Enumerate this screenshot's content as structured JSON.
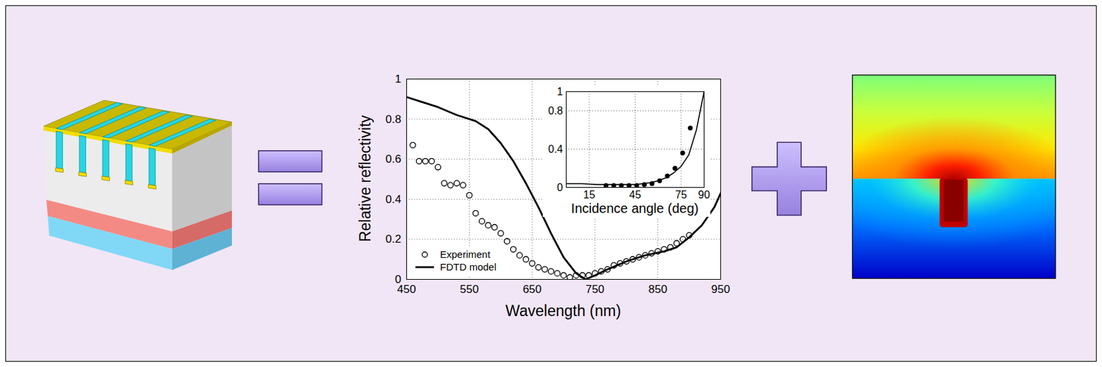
{
  "chart_data": [
    {
      "type": "line",
      "xlabel": "Wavelength (nm)",
      "ylabel": "Relative reflectivity",
      "xlim": [
        450,
        950
      ],
      "xticks": [
        450,
        550,
        650,
        750,
        850,
        950
      ],
      "ylim": [
        0,
        1
      ],
      "yticks": [
        0,
        0.2,
        0.4,
        0.6,
        0.8,
        1
      ],
      "grid": true,
      "legend": "lower left",
      "series": [
        {
          "name": "Experiment",
          "type": "scatter",
          "marker": "circle",
          "color": "#000000",
          "x": [
            460,
            470,
            480,
            490,
            500,
            510,
            520,
            530,
            540,
            550,
            560,
            570,
            580,
            590,
            600,
            610,
            620,
            630,
            640,
            650,
            660,
            670,
            680,
            690,
            700,
            710,
            720,
            730,
            740,
            750,
            760,
            770,
            780,
            790,
            800,
            810,
            820,
            830,
            840,
            850,
            860,
            870,
            880,
            890,
            900
          ],
          "values": [
            0.67,
            0.59,
            0.59,
            0.59,
            0.56,
            0.48,
            0.47,
            0.48,
            0.47,
            0.42,
            0.33,
            0.29,
            0.27,
            0.26,
            0.23,
            0.19,
            0.15,
            0.12,
            0.1,
            0.08,
            0.06,
            0.05,
            0.04,
            0.03,
            0.02,
            0.01,
            0.02,
            0.02,
            0.02,
            0.03,
            0.04,
            0.05,
            0.07,
            0.08,
            0.09,
            0.1,
            0.11,
            0.12,
            0.13,
            0.14,
            0.15,
            0.16,
            0.18,
            0.2,
            0.22
          ]
        },
        {
          "name": "FDTD model",
          "type": "line",
          "line_style": "solid",
          "color": "#000000",
          "x": [
            450,
            470,
            500,
            530,
            560,
            580,
            600,
            620,
            640,
            660,
            680,
            700,
            720,
            735,
            750,
            770,
            800,
            830,
            860,
            880,
            900,
            920,
            940,
            950
          ],
          "values": [
            0.91,
            0.89,
            0.86,
            0.82,
            0.79,
            0.75,
            0.68,
            0.59,
            0.48,
            0.36,
            0.23,
            0.11,
            0.03,
            0.0,
            0.02,
            0.05,
            0.09,
            0.12,
            0.14,
            0.16,
            0.21,
            0.27,
            0.36,
            0.43
          ]
        }
      ]
    },
    {
      "type": "line",
      "xlabel": "Incidence angle (deg)",
      "xlim": [
        0,
        90
      ],
      "xticks": [
        15,
        45,
        75,
        90
      ],
      "ylim": [
        0,
        1
      ],
      "yticks": [
        0,
        0.4,
        0.8,
        1
      ],
      "grid": true,
      "series": [
        {
          "type": "scatter",
          "marker": "dot",
          "color": "#000000",
          "x": [
            26,
            31,
            36,
            41,
            46,
            51,
            56,
            61,
            66,
            71,
            76,
            81
          ],
          "values": [
            0.02,
            0.02,
            0.02,
            0.02,
            0.02,
            0.03,
            0.04,
            0.07,
            0.12,
            0.2,
            0.36,
            0.62
          ]
        },
        {
          "type": "line",
          "line_style": "solid",
          "color": "#000000",
          "x": [
            0,
            10,
            20,
            30,
            40,
            45,
            50,
            55,
            60,
            65,
            70,
            75,
            80,
            85,
            90
          ],
          "values": [
            0.04,
            0.04,
            0.03,
            0.03,
            0.03,
            0.03,
            0.04,
            0.05,
            0.07,
            0.1,
            0.15,
            0.22,
            0.34,
            0.6,
            1
          ]
        }
      ]
    }
  ]
}
